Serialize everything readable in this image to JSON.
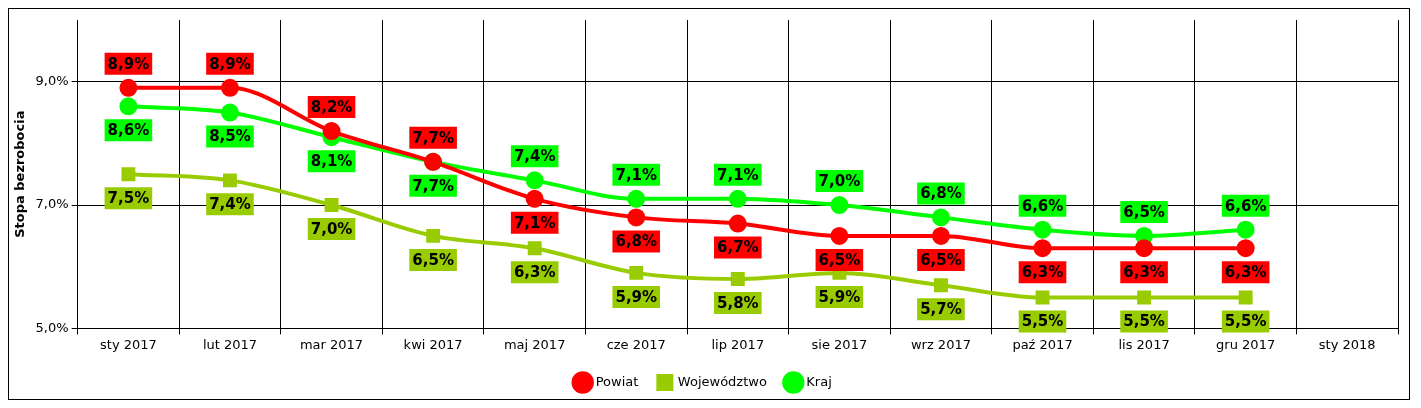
{
  "chart_data": {
    "type": "line",
    "ylabel": "Stopa bezrobocia",
    "categories": [
      "sty 2017",
      "lut 2017",
      "mar 2017",
      "kwi 2017",
      "maj 2017",
      "cze 2017",
      "lip 2017",
      "sie 2017",
      "wrz 2017",
      "paź 2017",
      "lis 2017",
      "gru 2017",
      "sty 2018"
    ],
    "ylim": [
      5,
      10
    ],
    "yticks": [
      {
        "value": 5,
        "label": "5,0%"
      },
      {
        "value": 7,
        "label": "7,0%"
      },
      {
        "value": 9,
        "label": "9,0%"
      }
    ],
    "grid": true,
    "legend": "bottom",
    "series": [
      {
        "name": "Powiat",
        "color": "#ff0000",
        "marker": "circle",
        "values": [
          8.9,
          8.9,
          8.2,
          7.7,
          7.1,
          6.8,
          6.7,
          6.5,
          6.5,
          6.3,
          6.3,
          6.3,
          null
        ],
        "value_labels": [
          "8,9%",
          "8,9%",
          "8,2%",
          "7,7%",
          "7,1%",
          "6,8%",
          "6,7%",
          "6,5%",
          "6,5%",
          "6,3%",
          "6,3%",
          "6,3%",
          null
        ]
      },
      {
        "name": "Województwo",
        "color": "#99cc00",
        "marker": "square",
        "values": [
          7.5,
          7.4,
          7.0,
          6.5,
          6.3,
          5.9,
          5.8,
          5.9,
          5.7,
          5.5,
          5.5,
          5.5,
          null
        ],
        "value_labels": [
          "7,5%",
          "7,4%",
          "7,0%",
          "6,5%",
          "6,3%",
          "5,9%",
          "5,8%",
          "5,9%",
          "5,7%",
          "5,5%",
          "5,5%",
          "5,5%",
          null
        ]
      },
      {
        "name": "Kraj",
        "color": "#00ff00",
        "marker": "circle",
        "values": [
          8.6,
          8.5,
          8.1,
          7.7,
          7.4,
          7.1,
          7.1,
          7.0,
          6.8,
          6.6,
          6.5,
          6.6,
          null
        ],
        "value_labels": [
          "8,6%",
          "8,5%",
          "8,1%",
          "7,7%",
          "7,4%",
          "7,1%",
          "7,1%",
          "7,0%",
          "6,8%",
          "6,6%",
          "6,5%",
          "6,6%",
          null
        ]
      }
    ]
  }
}
